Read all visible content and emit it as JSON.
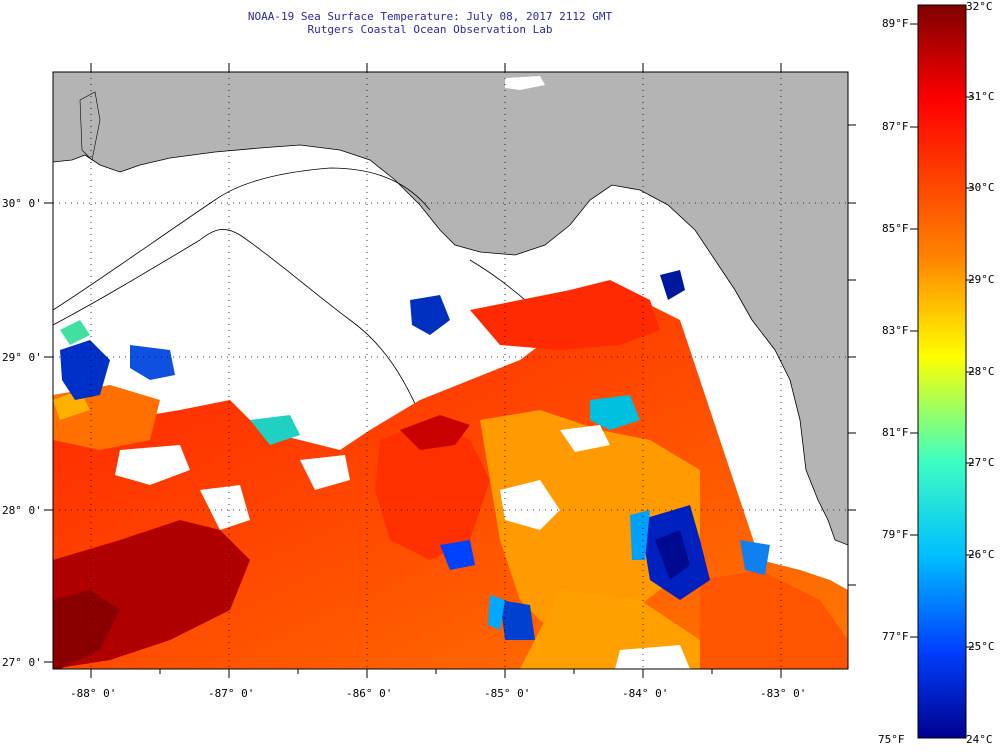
{
  "title": {
    "line1": "NOAA-19 Sea Surface Temperature:  July 08, 2017 2112 GMT",
    "line2": "Rutgers Coastal Ocean Observation Lab"
  },
  "map": {
    "lat_labels": [
      "30° 0'",
      "29° 0'",
      "28° 0'",
      "27° 0'"
    ],
    "lon_labels": [
      "-88° 0'",
      "-87° 0'",
      "-86° 0'",
      "-85° 0'",
      "-84° 0'",
      "-83° 0'"
    ],
    "colors": {
      "land": "#b4b4b4",
      "no_data": "#ffffff",
      "coast": "#000000"
    }
  },
  "colorbar": {
    "celsius_labels": [
      "32°C",
      "31°C",
      "30°C",
      "29°C",
      "28°C",
      "27°C",
      "26°C",
      "25°C",
      "24°C"
    ],
    "fahrenheit_labels": [
      "89°F",
      "87°F",
      "85°F",
      "83°F",
      "81°F",
      "79°F",
      "77°F",
      "75°F"
    ],
    "stops": [
      "#7f0000",
      "#ff0000",
      "#ff8000",
      "#ffff00",
      "#40ffc0",
      "#00c0ff",
      "#0040ff",
      "#00008f"
    ]
  }
}
